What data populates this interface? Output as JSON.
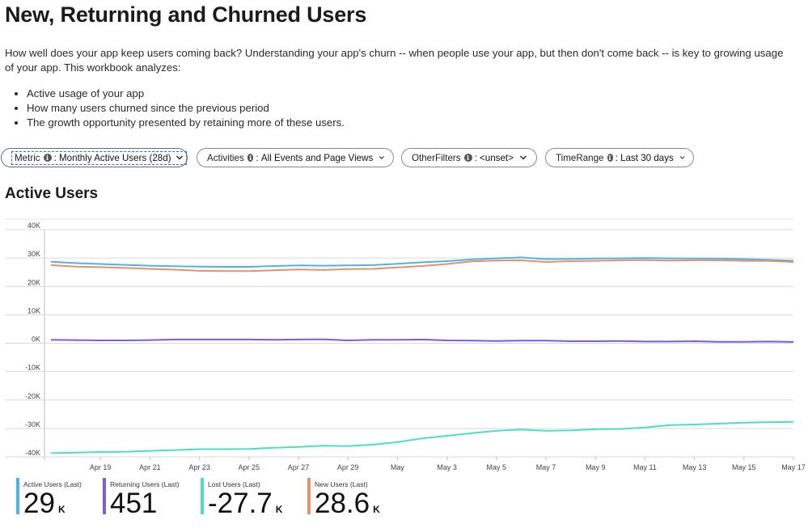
{
  "page": {
    "title": "New, Returning and Churned Users",
    "intro": "How well does your app keep users coming back? Understanding your app's churn -- when people use your app, but then don't come back -- is key to growing usage of your app. This workbook analyzes:",
    "bullets": [
      "Active usage of your app",
      "How many users churned since the previous period",
      "The growth opportunity presented by retaining more of these users."
    ]
  },
  "parameters": [
    {
      "name": "Metric",
      "value": "Monthly Active Users (28d)",
      "focused": true
    },
    {
      "name": "Activities",
      "value": "All Events and Page Views",
      "focused": false
    },
    {
      "name": "OtherFilters",
      "value": "<unset>",
      "focused": false
    },
    {
      "name": "TimeRange",
      "value": "Last 30 days",
      "focused": false
    }
  ],
  "section": {
    "title": "Active Users"
  },
  "chart_data": {
    "type": "line",
    "title": "Active Users",
    "ylim": [
      -40000,
      40000
    ],
    "yticks": [
      40000,
      30000,
      20000,
      10000,
      0,
      -10000,
      -20000,
      -30000,
      -40000
    ],
    "ytick_labels": [
      "40K",
      "30K",
      "20K",
      "10K",
      "0K",
      "-10K",
      "-20K",
      "-30K",
      "-40K"
    ],
    "xlim": [
      0,
      30
    ],
    "xticks": [
      2,
      4,
      6,
      8,
      10,
      12,
      14,
      16,
      18,
      20,
      22,
      24,
      26,
      28,
      30
    ],
    "xtick_labels": [
      "Apr 19",
      "Apr 21",
      "Apr 23",
      "Apr 25",
      "Apr 27",
      "Apr 29",
      "May",
      "May 3",
      "May 5",
      "May 7",
      "May 9",
      "May 11",
      "May 13",
      "May 15",
      "May 17"
    ],
    "series": [
      {
        "name": "Active Users",
        "color": "#4fb3e8",
        "values": [
          28700,
          28200,
          27900,
          27600,
          27300,
          27100,
          27000,
          26900,
          26900,
          27200,
          27400,
          27300,
          27400,
          27500,
          28000,
          28500,
          28900,
          29500,
          29900,
          30200,
          29600,
          29700,
          29800,
          29900,
          30000,
          29900,
          29800,
          29800,
          29600,
          29400,
          29000
        ]
      },
      {
        "name": "New Users",
        "color": "#e8906a",
        "values": [
          27500,
          27000,
          26800,
          26500,
          26200,
          25900,
          25500,
          25400,
          25400,
          25700,
          26000,
          25800,
          26100,
          26200,
          26700,
          27200,
          27900,
          28800,
          29100,
          29200,
          28600,
          28900,
          29000,
          29200,
          29300,
          29100,
          29200,
          29200,
          29000,
          29000,
          28600
        ]
      },
      {
        "name": "Returning Users",
        "color": "#7b5ce8",
        "values": [
          1200,
          1100,
          1000,
          1000,
          1100,
          1300,
          1300,
          1300,
          1300,
          1200,
          1300,
          1400,
          1000,
          1200,
          1200,
          1300,
          1000,
          900,
          800,
          900,
          900,
          700,
          700,
          800,
          600,
          600,
          700,
          500,
          500,
          600,
          451
        ]
      },
      {
        "name": "Lost Users",
        "color": "#4de0c0",
        "values": [
          -38700,
          -38500,
          -38300,
          -38200,
          -37900,
          -37600,
          -37300,
          -37300,
          -37200,
          -36800,
          -36500,
          -36100,
          -36200,
          -35700,
          -34800,
          -33500,
          -32600,
          -31700,
          -30800,
          -30400,
          -30800,
          -30700,
          -30300,
          -30200,
          -29700,
          -28800,
          -28600,
          -28300,
          -28000,
          -27800,
          -27700
        ]
      }
    ]
  },
  "tiles": [
    {
      "label": "Active Users (Last)",
      "value": "29",
      "unit": "K",
      "color": "#4fb3e8"
    },
    {
      "label": "Returning Users (Last)",
      "value": "451",
      "unit": "",
      "color": "#7b5ce8"
    },
    {
      "label": "Lost Users (Last)",
      "value": "-27.7",
      "unit": "K",
      "color": "#4de0c0"
    },
    {
      "label": "New Users (Last)",
      "value": "28.6",
      "unit": "K",
      "color": "#e8906a"
    }
  ]
}
